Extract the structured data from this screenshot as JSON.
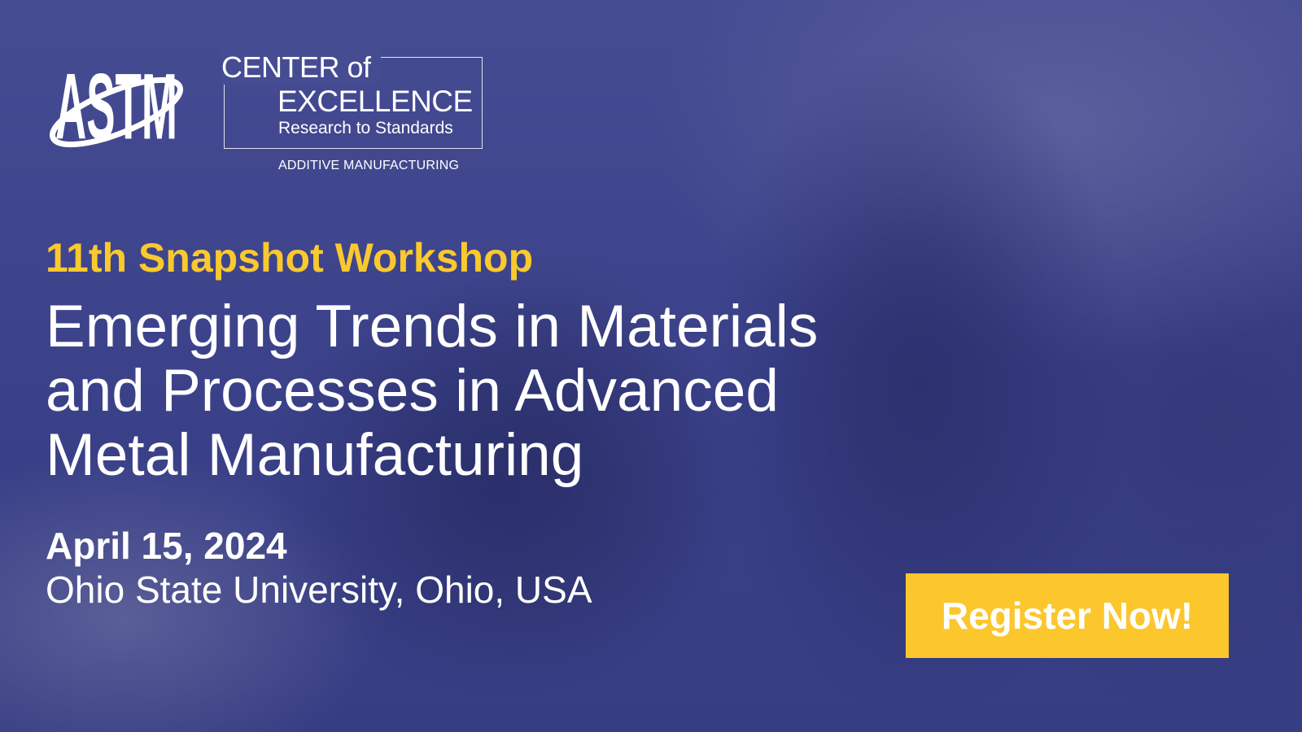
{
  "logo": {
    "brand": "ASTM"
  },
  "coe": {
    "line1": "CENTER of",
    "line2": "EXCELLENCE",
    "line3": "Research to Standards",
    "line4": "ADDITIVE MANUFACTURING"
  },
  "event": {
    "subtitle": "11th Snapshot Workshop",
    "title_lines": [
      "Emerging Trends in Materials",
      "and Processes in Advanced",
      "Metal Manufacturing"
    ],
    "date": "April 15, 2024",
    "location": "Ohio State University, Ohio, USA"
  },
  "cta": {
    "label": "Register Now!"
  },
  "colors": {
    "accent": "#f9c92e",
    "button": "#fcc62d",
    "background": "#3c4288"
  }
}
